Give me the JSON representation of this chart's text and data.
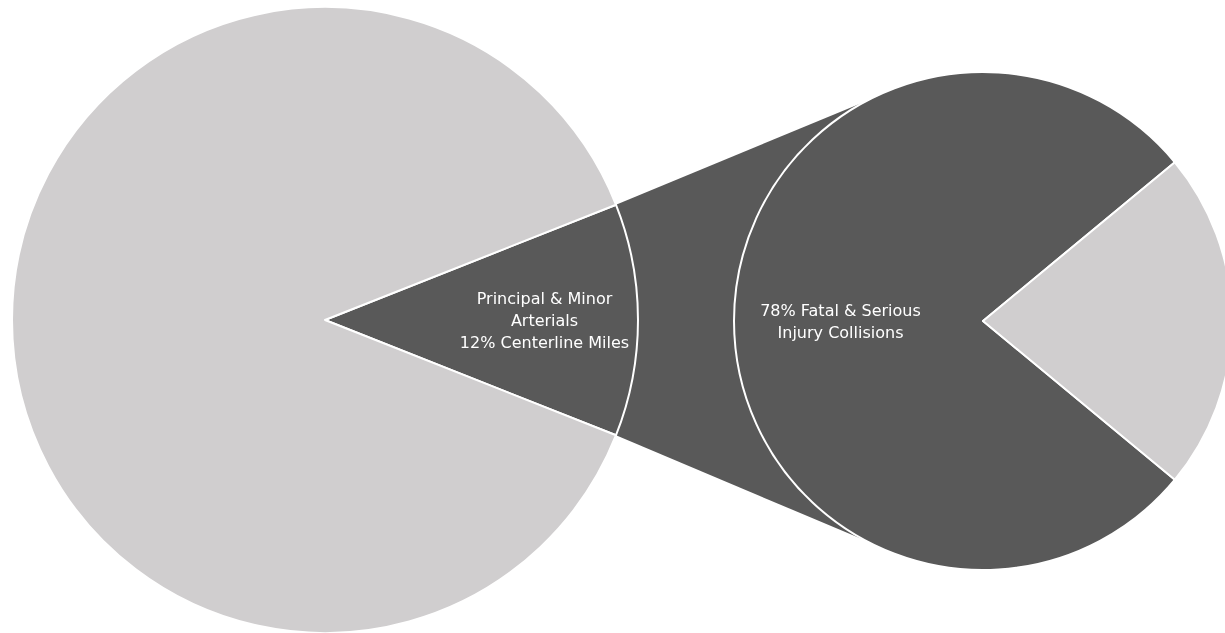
{
  "chart_data": [
    {
      "type": "pie",
      "categories": [
        "Principal & Minor\nArterials\n12% Centerline Miles",
        null
      ],
      "values": [
        12,
        88
      ],
      "colors": [
        "#595959",
        "#d0cecf"
      ]
    },
    {
      "type": "pie",
      "categories": [
        "78% Fatal & Serious\nInjury Collisions",
        null
      ],
      "values": [
        78,
        22
      ],
      "colors": [
        "#595959",
        "#d0cecf"
      ]
    }
  ]
}
